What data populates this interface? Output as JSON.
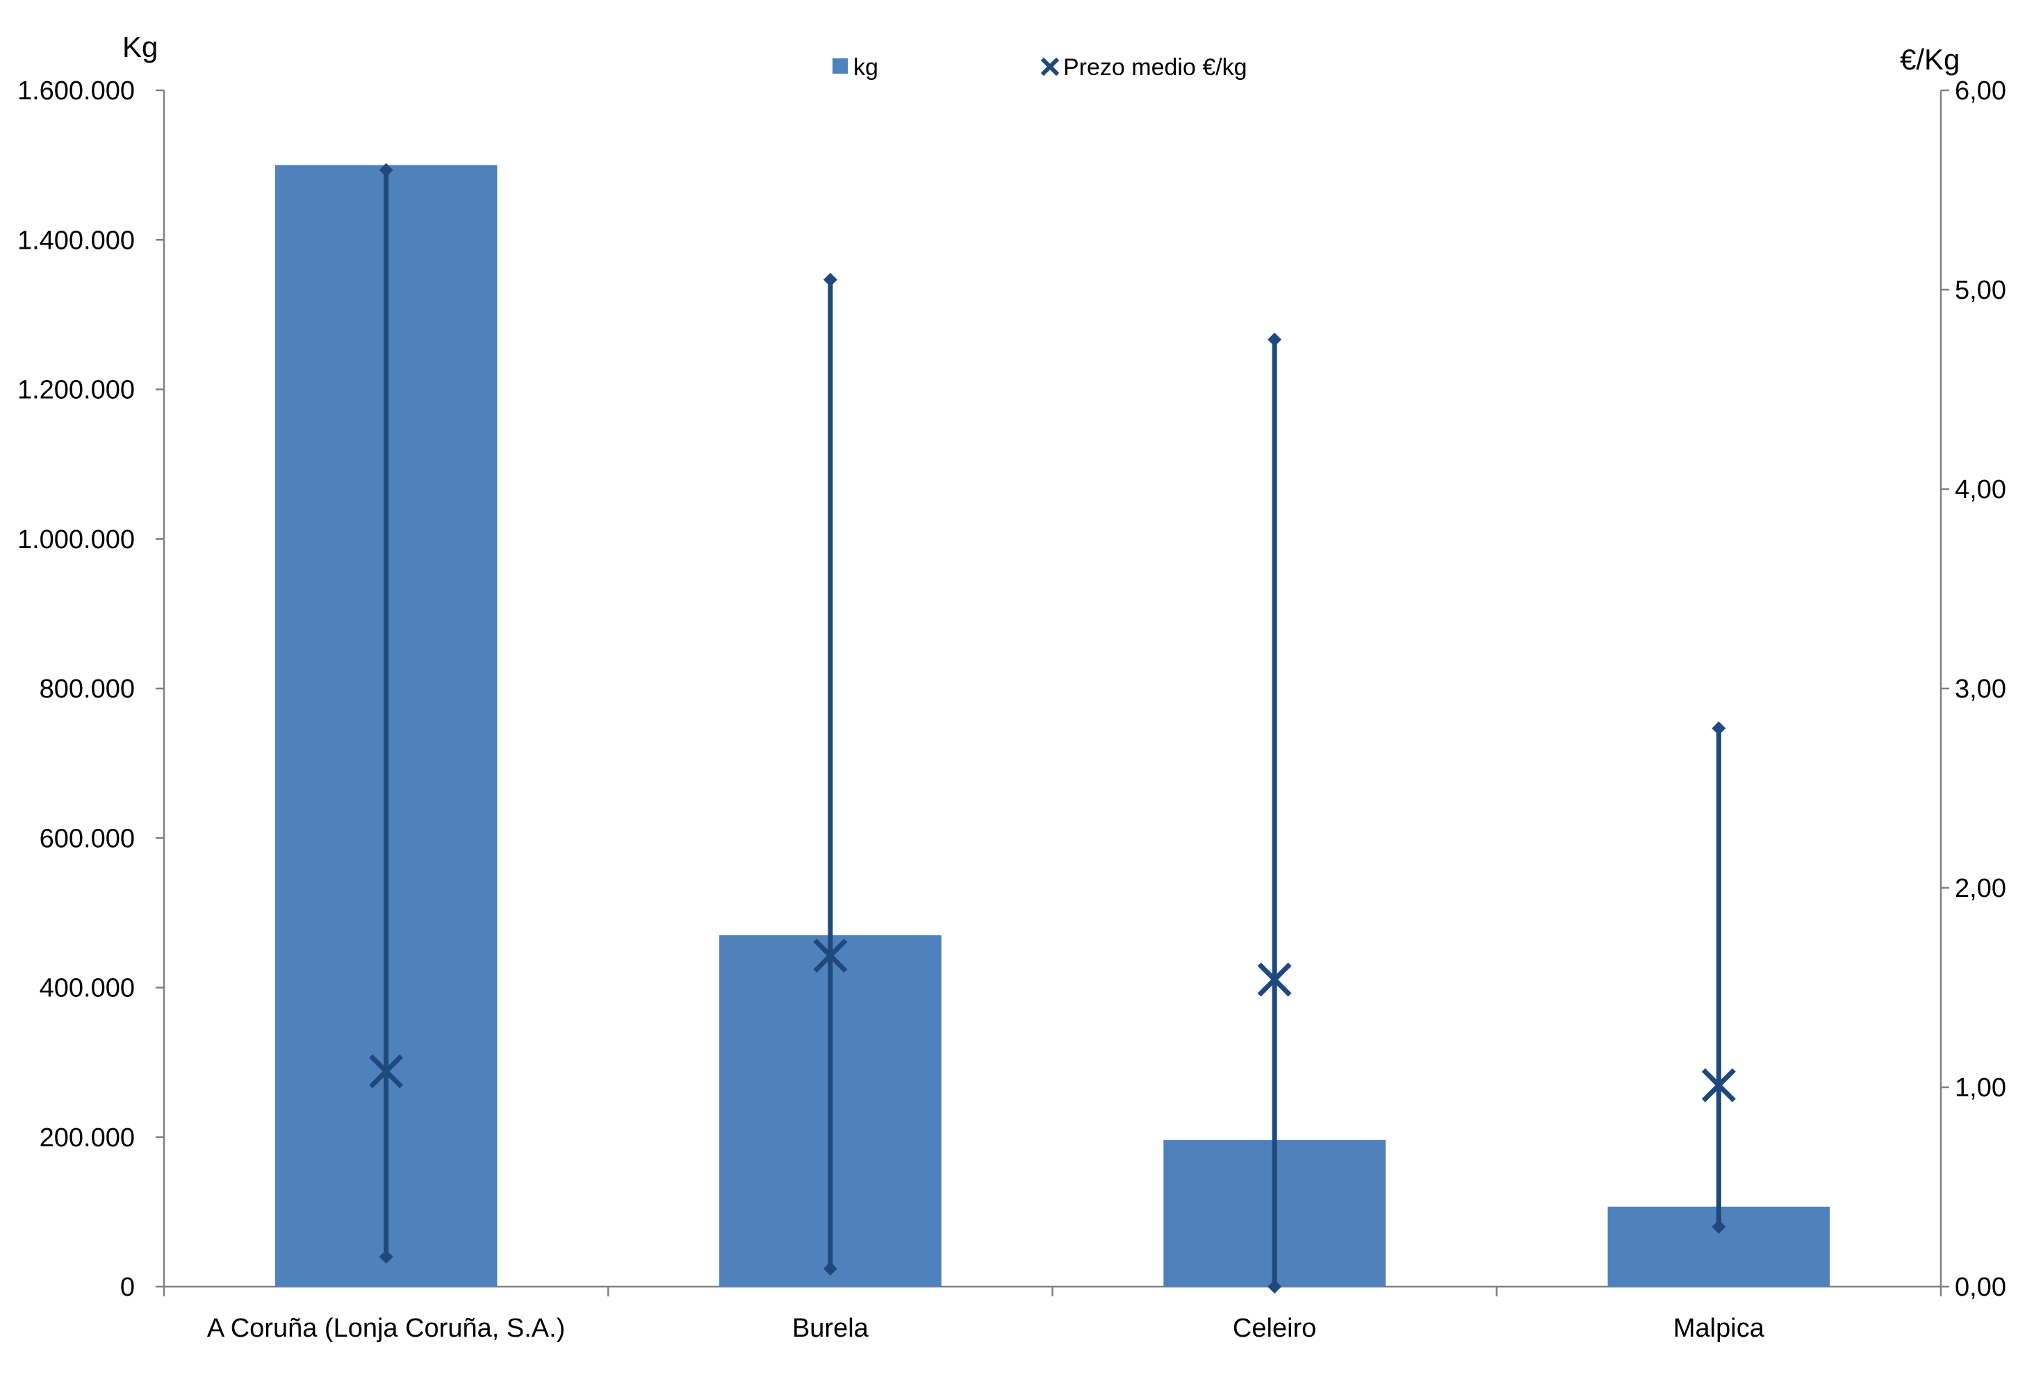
{
  "chart_data": {
    "type": "bar",
    "categories": [
      "A Coruña (Lonja Coruña, S.A.)",
      "Burela",
      "Celeiro",
      "Malpica"
    ],
    "series": [
      {
        "name": "kg",
        "type": "bar",
        "axis": "left",
        "color": "#4f81bd",
        "values": [
          1500000,
          470000,
          196000,
          107000
        ]
      },
      {
        "name": "Prezo medio €/kg",
        "type": "marker-x",
        "axis": "right",
        "color": "#1f497d",
        "values": [
          1.08,
          1.66,
          1.54,
          1.01
        ],
        "min": [
          0.15,
          0.09,
          0.0,
          0.3
        ],
        "max": [
          5.6,
          5.05,
          4.75,
          2.8
        ]
      }
    ],
    "y_left": {
      "label": "Kg",
      "ylim": [
        0,
        1600000
      ],
      "ticks": [
        0,
        200000,
        400000,
        600000,
        800000,
        1000000,
        1200000,
        1400000,
        1600000
      ],
      "tick_labels": [
        "0",
        "200.000",
        "400.000",
        "600.000",
        "800.000",
        "1.000.000",
        "1.200.000",
        "1.400.000",
        "1.600.000"
      ]
    },
    "y_right": {
      "label": "€/Kg",
      "ylim": [
        0,
        6
      ],
      "ticks": [
        0,
        1,
        2,
        3,
        4,
        5,
        6
      ],
      "tick_labels": [
        "0,00",
        "1,00",
        "2,00",
        "3,00",
        "4,00",
        "5,00",
        "6,00"
      ]
    },
    "legend": {
      "position": "top-center",
      "entries": [
        "kg",
        "Prezo medio €/kg"
      ]
    },
    "grid": false,
    "title": ""
  }
}
